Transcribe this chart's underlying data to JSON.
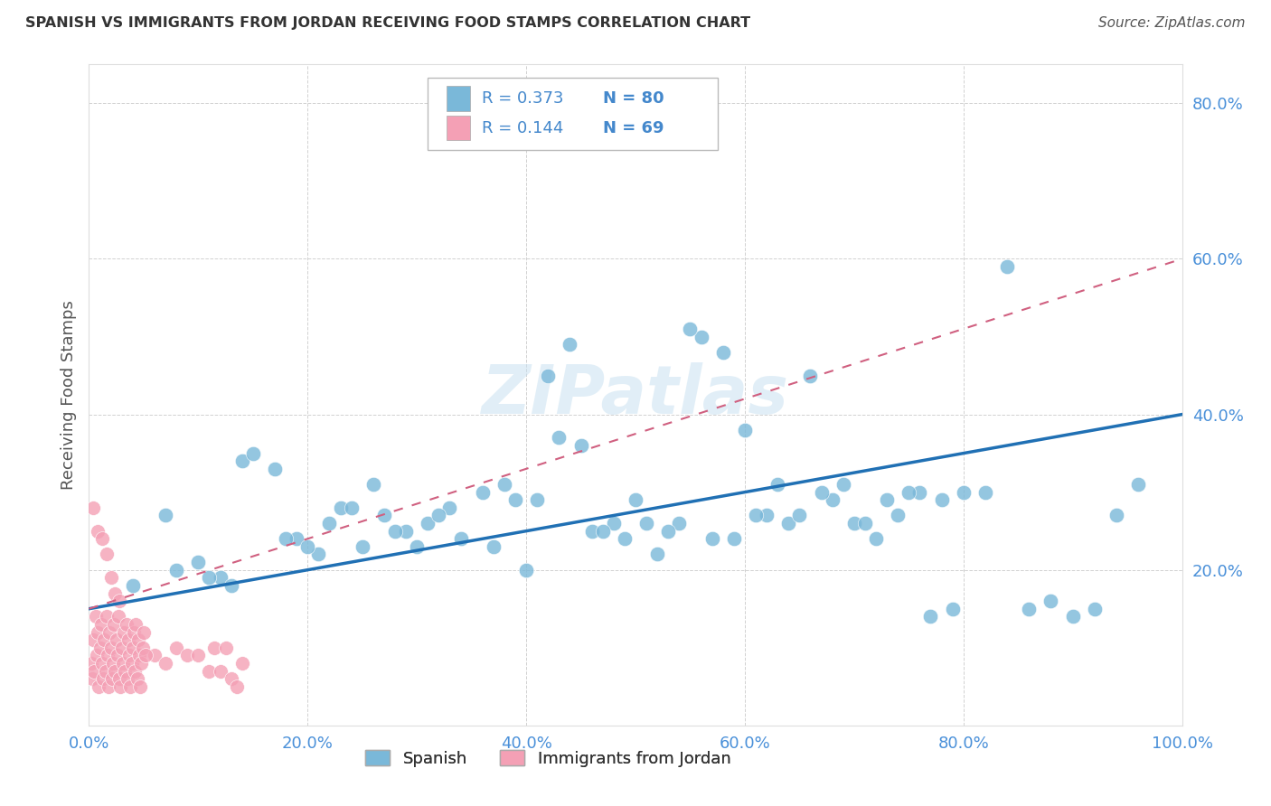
{
  "title": "SPANISH VS IMMIGRANTS FROM JORDAN RECEIVING FOOD STAMPS CORRELATION CHART",
  "source": "Source: ZipAtlas.com",
  "ylabel": "Receiving Food Stamps",
  "xlim": [
    0.0,
    1.0
  ],
  "ylim": [
    0.0,
    0.85
  ],
  "xticks": [
    0.0,
    0.2,
    0.4,
    0.6,
    0.8,
    1.0
  ],
  "yticks": [
    0.0,
    0.2,
    0.4,
    0.6,
    0.8
  ],
  "xtick_labels": [
    "0.0%",
    "20.0%",
    "40.0%",
    "60.0%",
    "80.0%",
    "100.0%"
  ],
  "ytick_labels": [
    "",
    "20.0%",
    "40.0%",
    "60.0%",
    "80.0%"
  ],
  "legend1_label": "R = 0.373",
  "legend1_N": "N = 80",
  "legend2_label": "R = 0.144",
  "legend2_N": "N = 69",
  "blue_color": "#7ab8d9",
  "pink_color": "#f4a0b5",
  "trend_blue_color": "#2070b4",
  "trend_pink_color": "#d06080",
  "watermark": "ZIPatlas",
  "legend_text_color": "#4488cc",
  "background_color": "#ffffff",
  "grid_color": "#cccccc",
  "title_color": "#333333",
  "tick_color": "#4a90d9",
  "axis_color": "#dddddd",
  "blue_x": [
    0.04,
    0.07,
    0.1,
    0.12,
    0.14,
    0.17,
    0.19,
    0.21,
    0.23,
    0.25,
    0.27,
    0.29,
    0.31,
    0.33,
    0.36,
    0.38,
    0.4,
    0.42,
    0.44,
    0.46,
    0.48,
    0.5,
    0.52,
    0.54,
    0.56,
    0.58,
    0.6,
    0.62,
    0.64,
    0.66,
    0.68,
    0.7,
    0.72,
    0.74,
    0.76,
    0.78,
    0.8,
    0.82,
    0.84,
    0.86,
    0.88,
    0.9,
    0.92,
    0.94,
    0.96,
    0.08,
    0.11,
    0.13,
    0.15,
    0.18,
    0.2,
    0.22,
    0.24,
    0.26,
    0.28,
    0.3,
    0.32,
    0.34,
    0.37,
    0.39,
    0.41,
    0.43,
    0.45,
    0.47,
    0.49,
    0.51,
    0.53,
    0.55,
    0.57,
    0.59,
    0.61,
    0.63,
    0.65,
    0.67,
    0.69,
    0.71,
    0.73,
    0.75,
    0.77,
    0.79
  ],
  "blue_y": [
    0.18,
    0.27,
    0.21,
    0.19,
    0.34,
    0.33,
    0.24,
    0.22,
    0.28,
    0.23,
    0.27,
    0.25,
    0.26,
    0.28,
    0.3,
    0.31,
    0.2,
    0.45,
    0.49,
    0.25,
    0.26,
    0.29,
    0.22,
    0.26,
    0.5,
    0.48,
    0.38,
    0.27,
    0.26,
    0.45,
    0.29,
    0.26,
    0.24,
    0.27,
    0.3,
    0.29,
    0.3,
    0.3,
    0.59,
    0.15,
    0.16,
    0.14,
    0.15,
    0.27,
    0.31,
    0.2,
    0.19,
    0.18,
    0.35,
    0.24,
    0.23,
    0.26,
    0.28,
    0.31,
    0.25,
    0.23,
    0.27,
    0.24,
    0.23,
    0.29,
    0.29,
    0.37,
    0.36,
    0.25,
    0.24,
    0.26,
    0.25,
    0.51,
    0.24,
    0.24,
    0.27,
    0.31,
    0.27,
    0.3,
    0.31,
    0.26,
    0.29,
    0.3,
    0.14,
    0.15
  ],
  "pink_x": [
    0.002,
    0.003,
    0.004,
    0.005,
    0.006,
    0.007,
    0.008,
    0.009,
    0.01,
    0.011,
    0.012,
    0.013,
    0.014,
    0.015,
    0.016,
    0.017,
    0.018,
    0.019,
    0.02,
    0.021,
    0.022,
    0.023,
    0.024,
    0.025,
    0.026,
    0.027,
    0.028,
    0.029,
    0.03,
    0.031,
    0.032,
    0.033,
    0.034,
    0.035,
    0.036,
    0.037,
    0.038,
    0.039,
    0.04,
    0.041,
    0.042,
    0.043,
    0.044,
    0.045,
    0.046,
    0.047,
    0.048,
    0.049,
    0.05,
    0.06,
    0.07,
    0.08,
    0.09,
    0.1,
    0.11,
    0.115,
    0.12,
    0.125,
    0.13,
    0.135,
    0.14,
    0.004,
    0.008,
    0.012,
    0.016,
    0.02,
    0.024,
    0.028,
    0.052
  ],
  "pink_y": [
    0.08,
    0.06,
    0.11,
    0.07,
    0.14,
    0.09,
    0.12,
    0.05,
    0.1,
    0.13,
    0.08,
    0.06,
    0.11,
    0.07,
    0.14,
    0.09,
    0.05,
    0.12,
    0.1,
    0.06,
    0.08,
    0.13,
    0.07,
    0.11,
    0.09,
    0.14,
    0.06,
    0.05,
    0.1,
    0.08,
    0.12,
    0.07,
    0.13,
    0.06,
    0.11,
    0.09,
    0.05,
    0.08,
    0.1,
    0.12,
    0.07,
    0.13,
    0.06,
    0.11,
    0.09,
    0.05,
    0.08,
    0.1,
    0.12,
    0.09,
    0.08,
    0.1,
    0.09,
    0.09,
    0.07,
    0.1,
    0.07,
    0.1,
    0.06,
    0.05,
    0.08,
    0.28,
    0.25,
    0.24,
    0.22,
    0.19,
    0.17,
    0.16,
    0.09
  ]
}
